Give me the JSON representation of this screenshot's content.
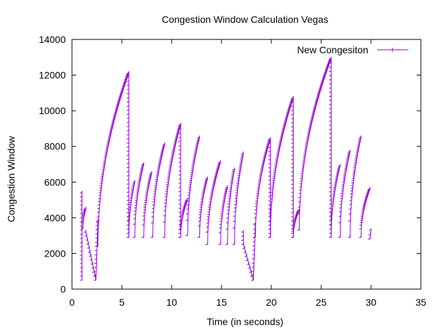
{
  "chart_data": {
    "type": "line",
    "title": "Congestion Window Calculation Vegas",
    "xlabel": "Time (in seconds)",
    "ylabel": "Congestion Window",
    "xlim": [
      0,
      35
    ],
    "ylim": [
      0,
      14000
    ],
    "xticks": [
      0,
      5,
      10,
      15,
      20,
      25,
      30,
      35
    ],
    "yticks": [
      0,
      2000,
      4000,
      6000,
      8000,
      10000,
      12000,
      14000
    ],
    "grid": false,
    "legend": "top-right",
    "series": [
      {
        "name": "New Congesiton",
        "color": "#9400d3",
        "marker": "plus",
        "segments": [
          {
            "start": [
              1.0,
              500
            ],
            "end": [
              1.0,
              5400
            ],
            "shape": "drop"
          },
          {
            "start": [
              1.1,
              3400
            ],
            "end": [
              1.4,
              4500
            ],
            "shape": "grow"
          },
          {
            "start": [
              1.4,
              3200
            ],
            "end": [
              2.4,
              500
            ],
            "shape": "drop"
          },
          {
            "start": [
              2.4,
              500
            ],
            "end": [
              2.6,
              3800
            ],
            "shape": "drop"
          },
          {
            "start": [
              2.6,
              2400
            ],
            "end": [
              5.7,
              12100
            ],
            "shape": "grow"
          },
          {
            "start": [
              5.7,
              12100
            ],
            "end": [
              5.7,
              2900
            ],
            "shape": "drop"
          },
          {
            "start": [
              5.7,
              2900
            ],
            "end": [
              6.3,
              6000
            ],
            "shape": "grow"
          },
          {
            "start": [
              6.3,
              2900
            ],
            "end": [
              7.2,
              7000
            ],
            "shape": "grow"
          },
          {
            "start": [
              7.2,
              2900
            ],
            "end": [
              8.0,
              6500
            ],
            "shape": "grow"
          },
          {
            "start": [
              8.1,
              2900
            ],
            "end": [
              9.3,
              8100
            ],
            "shape": "grow"
          },
          {
            "start": [
              9.3,
              2900
            ],
            "end": [
              10.9,
              9200
            ],
            "shape": "grow"
          },
          {
            "start": [
              10.9,
              9200
            ],
            "end": [
              10.9,
              2900
            ],
            "shape": "drop"
          },
          {
            "start": [
              10.9,
              2900
            ],
            "end": [
              11.6,
              5000
            ],
            "shape": "grow"
          },
          {
            "start": [
              11.6,
              3000
            ],
            "end": [
              12.8,
              8500
            ],
            "shape": "grow"
          },
          {
            "start": [
              12.8,
              2900
            ],
            "end": [
              13.6,
              6200
            ],
            "shape": "grow"
          },
          {
            "start": [
              13.6,
              2500
            ],
            "end": [
              14.9,
              7100
            ],
            "shape": "grow"
          },
          {
            "start": [
              14.9,
              2500
            ],
            "end": [
              15.6,
              5700
            ],
            "shape": "grow"
          },
          {
            "start": [
              15.6,
              2500
            ],
            "end": [
              16.3,
              6700
            ],
            "shape": "grow"
          },
          {
            "start": [
              16.3,
              2500
            ],
            "end": [
              17.2,
              7600
            ],
            "shape": "grow"
          },
          {
            "start": [
              17.2,
              3200
            ],
            "end": [
              17.2,
              2500
            ],
            "shape": "drop"
          },
          {
            "start": [
              17.2,
              2500
            ],
            "end": [
              18.2,
              500
            ],
            "shape": "drop"
          },
          {
            "start": [
              18.2,
              500
            ],
            "end": [
              18.4,
              3600
            ],
            "shape": "drop"
          },
          {
            "start": [
              18.4,
              2900
            ],
            "end": [
              19.9,
              8400
            ],
            "shape": "grow"
          },
          {
            "start": [
              19.9,
              8400
            ],
            "end": [
              19.9,
              2900
            ],
            "shape": "drop"
          },
          {
            "start": [
              19.9,
              2900
            ],
            "end": [
              22.2,
              10700
            ],
            "shape": "grow"
          },
          {
            "start": [
              22.2,
              10700
            ],
            "end": [
              22.2,
              2900
            ],
            "shape": "drop"
          },
          {
            "start": [
              22.2,
              2900
            ],
            "end": [
              22.8,
              4400
            ],
            "shape": "grow"
          },
          {
            "start": [
              22.8,
              3300
            ],
            "end": [
              26.0,
              12900
            ],
            "shape": "grow"
          },
          {
            "start": [
              26.0,
              12900
            ],
            "end": [
              26.0,
              2900
            ],
            "shape": "drop"
          },
          {
            "start": [
              26.0,
              2900
            ],
            "end": [
              26.9,
              6900
            ],
            "shape": "grow"
          },
          {
            "start": [
              26.9,
              2900
            ],
            "end": [
              27.9,
              7700
            ],
            "shape": "grow"
          },
          {
            "start": [
              27.9,
              2900
            ],
            "end": [
              29.0,
              8500
            ],
            "shape": "grow"
          },
          {
            "start": [
              29.0,
              2900
            ],
            "end": [
              29.9,
              5600
            ],
            "shape": "grow"
          },
          {
            "start": [
              29.9,
              2800
            ],
            "end": [
              30.0,
              3300
            ],
            "shape": "drop"
          }
        ]
      }
    ]
  }
}
